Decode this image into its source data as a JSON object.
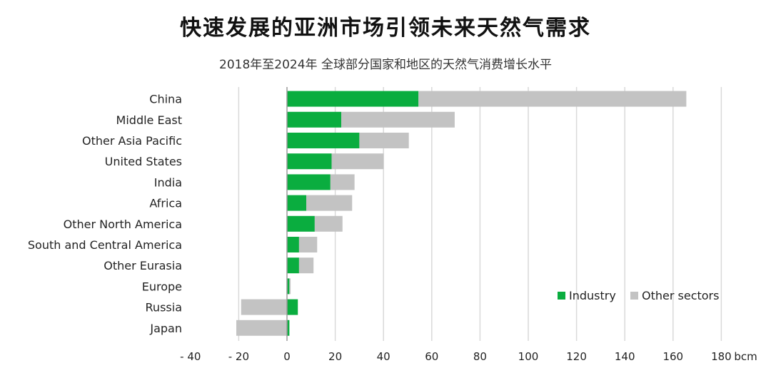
{
  "header": {
    "title": "快速发展的亚洲市场引领未来天然气需求",
    "subtitle": "2018年至2024年 全球部分国家和地区的天然气消费增长水平"
  },
  "chart_data": {
    "type": "bar",
    "orientation": "horizontal",
    "stacked": true,
    "title": "快速发展的亚洲市场引领未来天然气需求",
    "subtitle": "2018年至2024年 全球部分国家和地区的天然气消费增长水平",
    "unit": "bcm",
    "xlim": [
      -40,
      180
    ],
    "x_ticks": [
      "- 40",
      "- 20",
      "0",
      "20",
      "40",
      "60",
      "80",
      "100",
      "120",
      "140",
      "160",
      "180"
    ],
    "x_tick_values": [
      -40,
      -20,
      0,
      20,
      40,
      60,
      80,
      100,
      120,
      140,
      160,
      180
    ],
    "grid": true,
    "legend_position": "bottom-right",
    "categories": [
      "China",
      "Middle East",
      "Other Asia Pacific",
      "United States",
      "India",
      "Africa",
      "Other North America",
      "South and Central America",
      "Other Eurasia",
      "Europe",
      "Russia",
      "Japan"
    ],
    "series": [
      {
        "name": "Industry",
        "color": "#0aad3f",
        "values": [
          54.5,
          22.5,
          30,
          18.5,
          18,
          8,
          11.5,
          5,
          5,
          1,
          4.5,
          1
        ]
      },
      {
        "name": "Other sectors",
        "color": "#c3c3c3",
        "values": [
          111,
          47,
          20.5,
          21.5,
          10,
          19,
          11.5,
          7.5,
          6,
          0.5,
          -19,
          -21
        ]
      }
    ]
  }
}
